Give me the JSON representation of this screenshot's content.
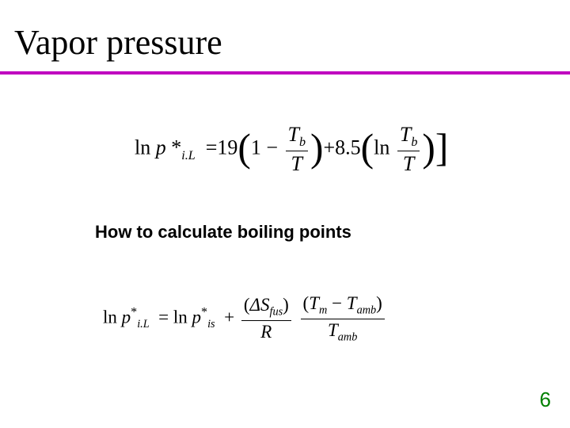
{
  "title": "Vapor pressure",
  "subtitle": "How to calculate boiling points",
  "pagenum": "6",
  "colors": {
    "underline": "#c000c0",
    "pagenum": "#008000",
    "background": "#ffffff",
    "text": "#000000"
  },
  "typography": {
    "title_family": "Times New Roman",
    "title_size_pt": 44,
    "subtitle_family": "Arial",
    "subtitle_size_pt": 22,
    "subtitle_weight": "bold",
    "equation_family": "Times New Roman",
    "equation_size_pt": 26,
    "equation_style": "italic",
    "pagenum_family": "Arial",
    "pagenum_size_pt": 26
  },
  "eq1": {
    "ln": "ln",
    "p": "p",
    "star": "*",
    "sub_iL": "i.L",
    "eq": "=",
    "coef1": "19",
    "one": "1",
    "minus": "−",
    "Tb": "T",
    "Tb_sub": "b",
    "T": "T",
    "plus": "+",
    "coef2": "8.5",
    "ln2": "ln"
  },
  "eq2": {
    "ln": "ln",
    "p": "p",
    "sub_iL": "i.L",
    "star": "*",
    "eq": "=",
    "sub_is": "is",
    "plus": "+",
    "deltaS": "ΔS",
    "fus": "fus",
    "R": "R",
    "Tm": "T",
    "m": "m",
    "minus": "−",
    "Tamb": "T",
    "amb": "amb"
  }
}
